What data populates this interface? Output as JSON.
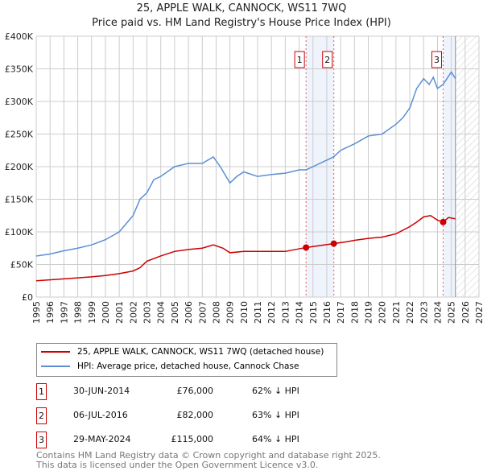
{
  "chart_data": {
    "type": "line",
    "title": "25, APPLE WALK, CANNOCK, WS11 7WQ",
    "subtitle": "Price paid vs. HM Land Registry's House Price Index (HPI)",
    "xlim": [
      1995,
      2027
    ],
    "ylim": [
      0,
      400000
    ],
    "x_ticks": [
      "1995",
      "1996",
      "1997",
      "1998",
      "1999",
      "2000",
      "2001",
      "2002",
      "2003",
      "2004",
      "2005",
      "2006",
      "2007",
      "2008",
      "2009",
      "2010",
      "2011",
      "2012",
      "2013",
      "2014",
      "2015",
      "2016",
      "2017",
      "2018",
      "2019",
      "2020",
      "2021",
      "2022",
      "2023",
      "2024",
      "2025",
      "2026",
      "2027"
    ],
    "y_ticks": [
      {
        "v": 0,
        "l": "£0"
      },
      {
        "v": 50000,
        "l": "£50K"
      },
      {
        "v": 100000,
        "l": "£100K"
      },
      {
        "v": 150000,
        "l": "£150K"
      },
      {
        "v": 200000,
        "l": "£200K"
      },
      {
        "v": 250000,
        "l": "£250K"
      },
      {
        "v": 300000,
        "l": "£300K"
      },
      {
        "v": 350000,
        "l": "£350K"
      },
      {
        "v": 400000,
        "l": "£400K"
      }
    ],
    "series": [
      {
        "name": "25, APPLE WALK, CANNOCK, WS11 7WQ (detached house)",
        "color": "#cc0000",
        "x": [
          1995,
          1997,
          1999,
          2000,
          2001,
          2002,
          2002.5,
          2003,
          2004,
          2005,
          2006,
          2007,
          2007.8,
          2008.5,
          2009,
          2010,
          2011,
          2012,
          2013,
          2014.5,
          2015.5,
          2016.5,
          2017.5,
          2018,
          2019,
          2020,
          2021,
          2022,
          2022.5,
          2023,
          2023.5,
          2024,
          2024.4,
          2024.8,
          2025.3
        ],
        "y": [
          25000,
          28000,
          31000,
          33000,
          36000,
          40000,
          45000,
          55000,
          63000,
          70000,
          73000,
          75000,
          80000,
          75000,
          68000,
          70000,
          70000,
          70000,
          70000,
          76000,
          79000,
          82000,
          85000,
          87000,
          90000,
          92000,
          97000,
          108000,
          115000,
          123000,
          125000,
          118000,
          115000,
          122000,
          120000
        ]
      },
      {
        "name": "HPI: Average price, detached house, Cannock Chase",
        "color": "#5b8fd6",
        "x": [
          1995,
          1996,
          1997,
          1998,
          1999,
          2000,
          2001,
          2002,
          2002.5,
          2003,
          2003.5,
          2004,
          2005,
          2006,
          2007,
          2007.8,
          2008.3,
          2009,
          2009.5,
          2010,
          2011,
          2012,
          2013,
          2014,
          2014.5,
          2015,
          2016,
          2016.5,
          2017,
          2018,
          2019,
          2020,
          2021,
          2021.5,
          2022,
          2022.5,
          2023,
          2023.4,
          2023.7,
          2024,
          2024.4,
          2025,
          2025.3
        ],
        "y": [
          63000,
          66000,
          71000,
          75000,
          80000,
          88000,
          100000,
          125000,
          150000,
          160000,
          180000,
          185000,
          200000,
          205000,
          205000,
          215000,
          200000,
          175000,
          185000,
          192000,
          185000,
          188000,
          190000,
          195000,
          195000,
          200000,
          210000,
          215000,
          225000,
          235000,
          247000,
          250000,
          265000,
          275000,
          290000,
          320000,
          335000,
          326000,
          337000,
          320000,
          326000,
          345000,
          335000
        ]
      }
    ],
    "sales": [
      {
        "n": "1",
        "x": 2014.5,
        "y": 76000
      },
      {
        "n": "2",
        "x": 2016.51,
        "y": 82000
      },
      {
        "n": "3",
        "x": 2024.41,
        "y": 115000
      }
    ],
    "shaded": [
      [
        2014.5,
        2016.51
      ],
      [
        2024.41,
        2025.3
      ]
    ],
    "forecast_start": 2025.3
  },
  "legend": {
    "red": "25, APPLE WALK, CANNOCK, WS11 7WQ (detached house)",
    "blue": "HPI: Average price, detached house, Cannock Chase"
  },
  "table": [
    {
      "n": "1",
      "date": "30-JUN-2014",
      "price": "£76,000",
      "hpi": "62% ↓ HPI"
    },
    {
      "n": "2",
      "date": "06-JUL-2016",
      "price": "£82,000",
      "hpi": "63% ↓ HPI"
    },
    {
      "n": "3",
      "date": "29-MAY-2024",
      "price": "£115,000",
      "hpi": "64% ↓ HPI"
    }
  ],
  "footer": {
    "line1": "Contains HM Land Registry data © Crown copyright and database right 2025.",
    "line2": "This data is licensed under the Open Government Licence v3.0."
  }
}
